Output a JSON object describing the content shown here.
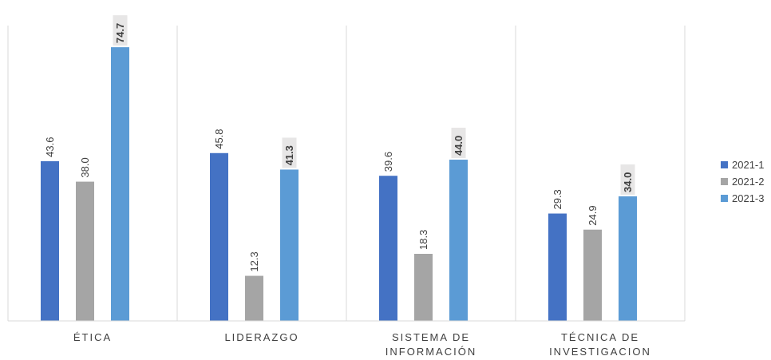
{
  "chart_data": {
    "type": "bar",
    "categories": [
      [
        "ÉTICA"
      ],
      [
        "LIDERAZGO"
      ],
      [
        "SISTEMA DE",
        "INFORMACIÓN"
      ],
      [
        "TÉCNICA DE",
        "INVESTIGACION"
      ]
    ],
    "series": [
      {
        "name": "2021-1",
        "color": "#4472C4",
        "values": [
          43.6,
          45.8,
          39.6,
          29.3
        ],
        "labels": [
          "43.6",
          "45.8",
          "39.6",
          "29.3"
        ]
      },
      {
        "name": "2021-2",
        "color": "#A5A5A5",
        "values": [
          38.0,
          12.3,
          18.3,
          24.9
        ],
        "labels": [
          "38.0",
          "12.3",
          "18.3",
          "24.9"
        ]
      },
      {
        "name": "2021-3",
        "color": "#5B9BD5",
        "values": [
          74.7,
          41.3,
          44.0,
          34.0
        ],
        "labels": [
          "74.7",
          "41.3",
          "44.0",
          "34.0"
        ],
        "highlight_labels": true
      }
    ],
    "ylim": [
      0,
      80
    ],
    "grid": "vertical-separators",
    "legend": "right"
  }
}
